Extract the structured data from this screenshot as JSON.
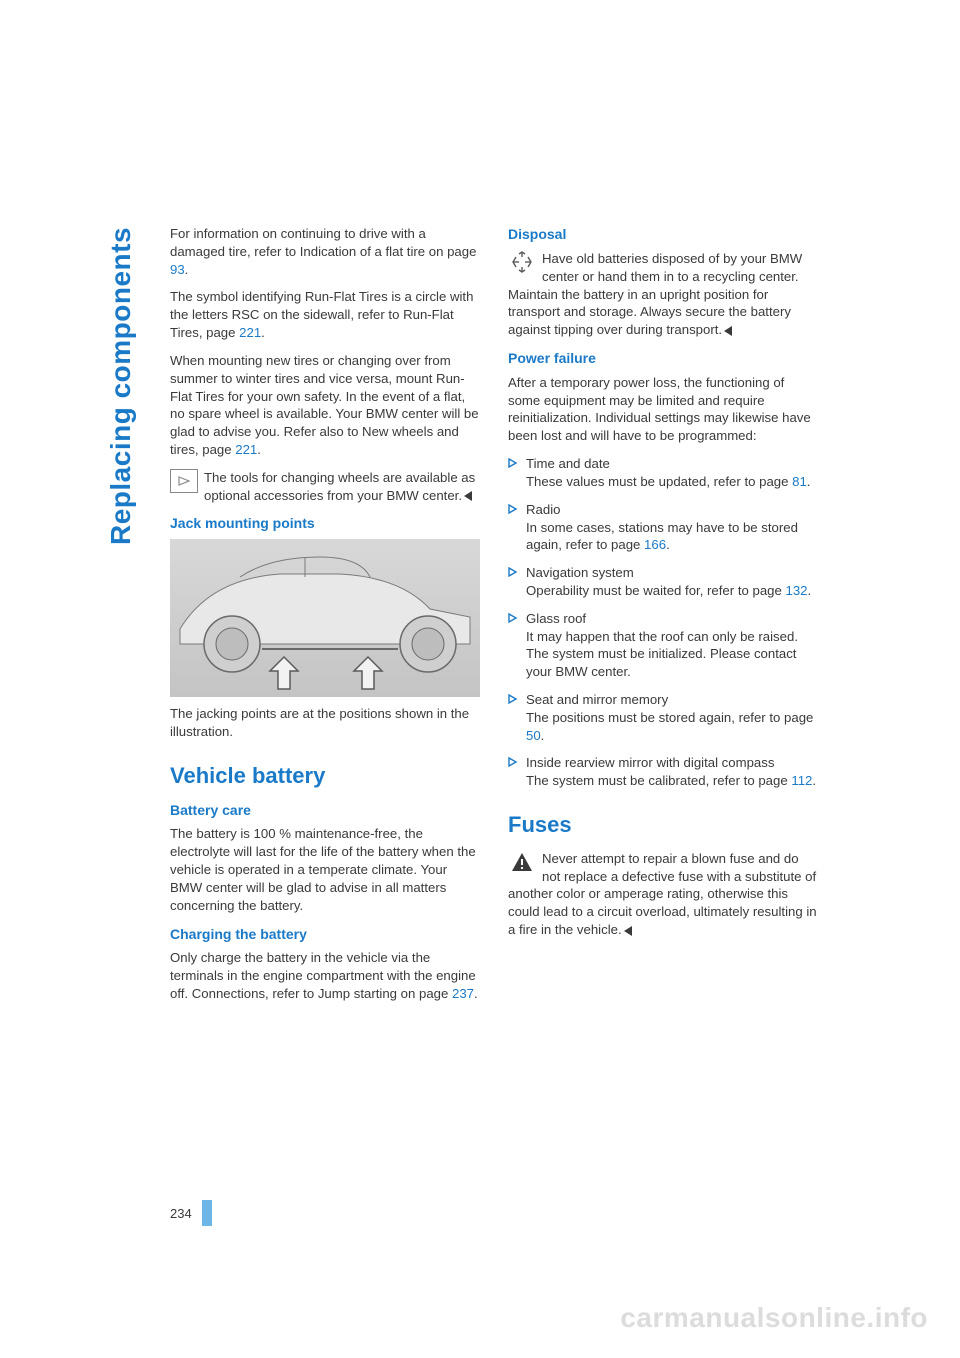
{
  "side_title": "Replacing components",
  "page_number": "234",
  "watermark": "carmanualsonline.info",
  "colors": {
    "accent": "#1a7ac8",
    "text": "#3a3a3a",
    "page_bar": "#6fb6e8",
    "watermark": "#dcdcdc"
  },
  "left": {
    "p1a": "For information on continuing to drive with a damaged tire, refer to Indication of a flat tire on page ",
    "p1_link": "93",
    "p1b": ".",
    "p2a": "The symbol identifying Run-Flat Tires is a circle with the letters RSC on the sidewall, refer to Run-Flat Tires, page ",
    "p2_link": "221",
    "p2b": ".",
    "p3a": "When mounting new tires or changing over from summer to winter tires and vice versa, mount Run-Flat Tires for your own safety. In the event of a flat, no spare wheel is available. Your BMW center will be glad to advise you. Refer also to New wheels and tires, page ",
    "p3_link": "221",
    "p3b": ".",
    "note1": "The tools for changing wheels are available as optional accessories from your BMW center.",
    "h_jack": "Jack mounting points",
    "jack_caption": "The jacking points are at the positions shown in the illustration.",
    "h_vehicle": "Vehicle battery",
    "h_battery_care": "Battery care",
    "battery_care_text": "The battery is 100 % maintenance-free, the electrolyte will last for the life of the battery when the vehicle is operated in a temperate climate. Your BMW center will be glad to advise in all matters concerning the battery.",
    "h_charging": "Charging the battery",
    "charging_a": "Only charge the battery in the vehicle via the terminals in the engine compartment with the engine off. Connections, refer to Jump starting on page ",
    "charging_link": "237",
    "charging_b": "."
  },
  "right": {
    "h_disposal": "Disposal",
    "disposal_text": "Have old batteries disposed of by your BMW center or hand them in to a recycling center. Maintain the battery in an upright position for transport and storage. Always secure the battery against tipping over during transport.",
    "h_power": "Power failure",
    "power_intro": "After a temporary power loss, the functioning of some equipment may be limited and require reinitialization. Individual settings may likewise have been lost and will have to be programmed:",
    "bullets": [
      {
        "title": "Time and date",
        "body_a": "These values must be updated, refer to page ",
        "link": "81",
        "body_b": "."
      },
      {
        "title": "Radio",
        "body_a": "In some cases, stations may have to be stored again, refer to page ",
        "link": "166",
        "body_b": "."
      },
      {
        "title": "Navigation system",
        "body_a": "Operability must be waited for, refer to page ",
        "link": "132",
        "body_b": "."
      },
      {
        "title": "Glass roof",
        "body_a": "It may happen that the roof can only be raised. The system must be initialized. Please contact your BMW center.",
        "link": "",
        "body_b": ""
      },
      {
        "title": "Seat and mirror memory",
        "body_a": "The positions must be stored again, refer to page ",
        "link": "50",
        "body_b": "."
      },
      {
        "title": "Inside rearview mirror with digital compass",
        "body_a": "The system must be calibrated, refer to page ",
        "link": "112",
        "body_b": "."
      }
    ],
    "h_fuses": "Fuses",
    "fuses_text": "Never attempt to repair a blown fuse and do not replace a defective fuse with a substitute of another color or amperage rating, otherwise this could lead to a circuit overload, ultimately resulting in a fire in the vehicle."
  }
}
